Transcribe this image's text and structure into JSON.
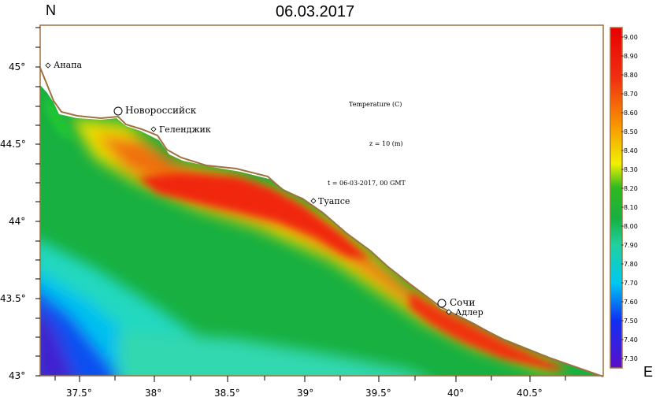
{
  "title": "06.03.2017",
  "north_label": "N",
  "east_label": "E",
  "map": {
    "lon_range": [
      37.22,
      40.98
    ],
    "lat_range": [
      43.0,
      45.25
    ],
    "x_ticks": [
      {
        "value": 37.5,
        "label": "37.5°"
      },
      {
        "value": 38.0,
        "label": "38°"
      },
      {
        "value": 38.5,
        "label": "38.5°"
      },
      {
        "value": 39.0,
        "label": "39°"
      },
      {
        "value": 39.5,
        "label": "39.5°"
      },
      {
        "value": 40.0,
        "label": "40°"
      },
      {
        "value": 40.5,
        "label": "40.5°"
      }
    ],
    "y_ticks": [
      {
        "value": 45.0,
        "label": "45°"
      },
      {
        "value": 44.5,
        "label": "44.5°"
      },
      {
        "value": 44.0,
        "label": "44°"
      },
      {
        "value": 43.5,
        "label": "43.5°"
      },
      {
        "value": 43.0,
        "label": "43°"
      }
    ],
    "coast_color": "#a07040"
  },
  "annotations": {
    "parameter": "Temperature (C)",
    "depth": "z = 10 (m)",
    "time": "t = 06-03-2017, 00 GMT"
  },
  "cities": [
    {
      "name": "Анапа",
      "lon": 37.28,
      "lat": 45.0,
      "size": "small"
    },
    {
      "name": "Новороссийск",
      "lon": 37.77,
      "lat": 44.71,
      "size": "large"
    },
    {
      "name": "Геленджик",
      "lon": 38.0,
      "lat": 44.59,
      "size": "small"
    },
    {
      "name": "Туапсе",
      "lon": 39.06,
      "lat": 44.11,
      "size": "small"
    },
    {
      "name": "Сочи",
      "lon": 39.9,
      "lat": 43.47,
      "size": "large"
    },
    {
      "name": "Адлер",
      "lon": 39.95,
      "lat": 43.41,
      "size": "small"
    }
  ],
  "colorbar": {
    "labels": [
      "9.00",
      "8.90",
      "8.80",
      "8.70",
      "8.60",
      "8.50",
      "8.40",
      "8.30",
      "8.20",
      "8.10",
      "8.00",
      "7.90",
      "7.80",
      "7.70",
      "7.60",
      "7.50",
      "7.40",
      "7.30"
    ],
    "min": 7.25,
    "max": 9.05,
    "stops": [
      {
        "value": 7.3,
        "color": "#5a10c8"
      },
      {
        "value": 7.5,
        "color": "#1030f0"
      },
      {
        "value": 7.7,
        "color": "#00c8f0"
      },
      {
        "value": 7.85,
        "color": "#20d0a0"
      },
      {
        "value": 8.0,
        "color": "#18b040"
      },
      {
        "value": 8.15,
        "color": "#30b820"
      },
      {
        "value": 8.3,
        "color": "#f0f000"
      },
      {
        "value": 8.5,
        "color": "#f89000"
      },
      {
        "value": 8.7,
        "color": "#f03010"
      },
      {
        "value": 9.0,
        "color": "#e80000"
      }
    ]
  }
}
